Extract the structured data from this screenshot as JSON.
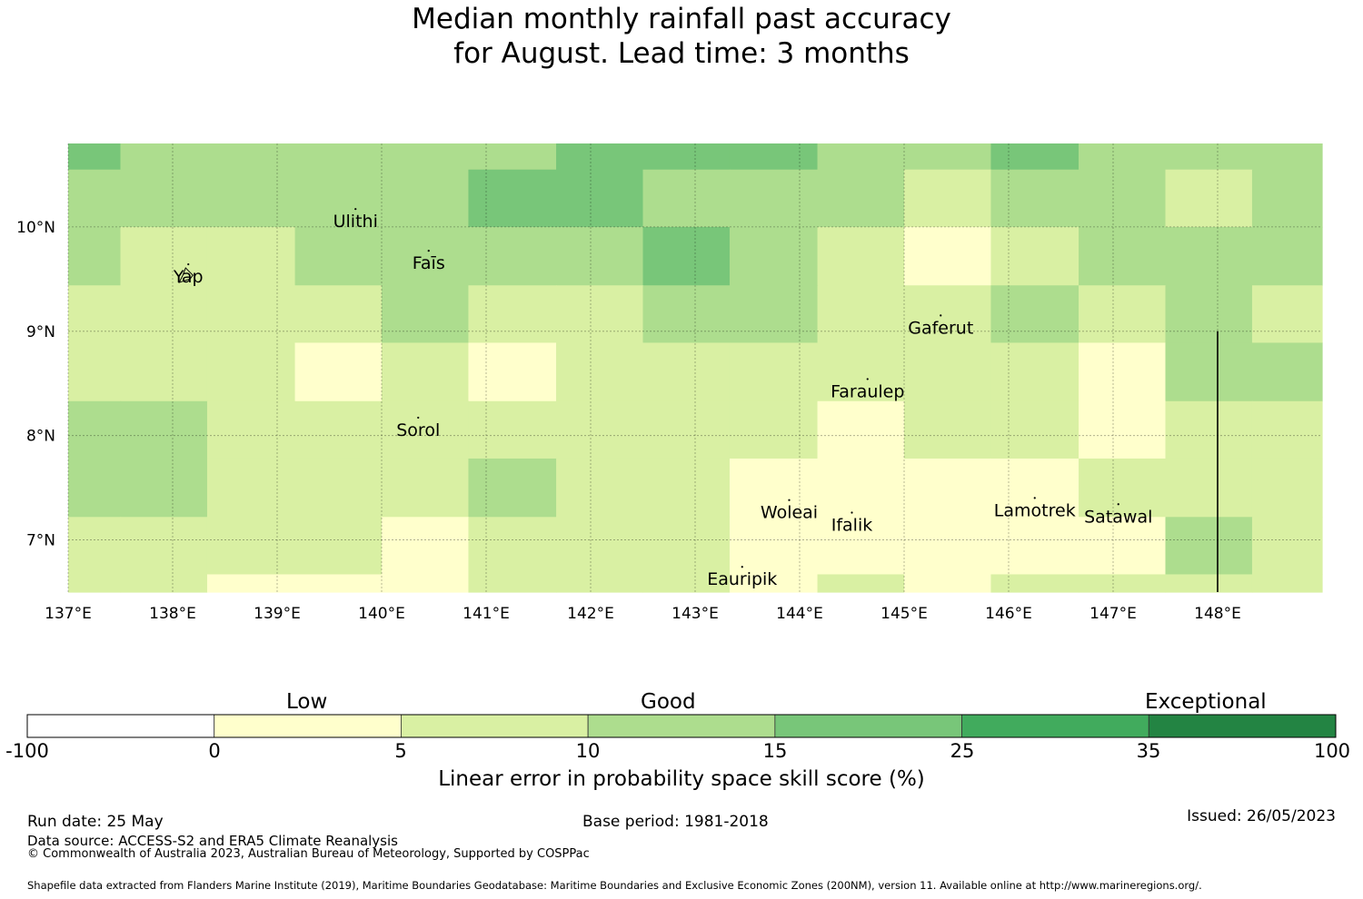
{
  "title": {
    "line1": "Median monthly rainfall past accuracy",
    "line2": "for August. Lead time: 3 months"
  },
  "map": {
    "lon_range": [
      137.0,
      149.0
    ],
    "lat_range": [
      6.5,
      10.8
    ],
    "lon_ticks": [
      137,
      138,
      139,
      140,
      141,
      142,
      143,
      144,
      145,
      146,
      147,
      148
    ],
    "lat_ticks": [
      7,
      8,
      9,
      10
    ],
    "lon_tick_labels": [
      "137°E",
      "138°E",
      "139°E",
      "140°E",
      "141°E",
      "142°E",
      "143°E",
      "144°E",
      "145°E",
      "146°E",
      "147°E",
      "148°E"
    ],
    "lat_tick_labels": [
      "7°N",
      "8°N",
      "9°N",
      "10°N"
    ],
    "cell_lon_edges": [
      137.0,
      137.5,
      138.33,
      139.17,
      140.0,
      140.83,
      141.67,
      142.5,
      143.33,
      144.17,
      145.0,
      145.83,
      146.67,
      147.5,
      148.33,
      149.0
    ],
    "cell_lat_edges": [
      10.8,
      10.55,
      10.0,
      9.44,
      8.89,
      8.33,
      7.78,
      7.22,
      6.67,
      6.5
    ],
    "grid_class_rows": [
      [
        4,
        3,
        3,
        3,
        3,
        3,
        4,
        4,
        4,
        3,
        3,
        4,
        3,
        3,
        3
      ],
      [
        3,
        3,
        3,
        3,
        3,
        4,
        4,
        3,
        3,
        3,
        2,
        3,
        3,
        2,
        3
      ],
      [
        3,
        2,
        2,
        3,
        3,
        3,
        3,
        4,
        3,
        2,
        1,
        2,
        3,
        3,
        3
      ],
      [
        2,
        2,
        2,
        2,
        3,
        2,
        2,
        3,
        3,
        2,
        2,
        3,
        2,
        3,
        2
      ],
      [
        2,
        2,
        2,
        1,
        2,
        1,
        2,
        2,
        2,
        2,
        2,
        2,
        1,
        3,
        3
      ],
      [
        3,
        3,
        2,
        2,
        2,
        2,
        2,
        2,
        2,
        1,
        2,
        2,
        1,
        2,
        2
      ],
      [
        3,
        3,
        2,
        2,
        2,
        3,
        2,
        2,
        1,
        1,
        1,
        1,
        2,
        2,
        2
      ],
      [
        2,
        2,
        2,
        2,
        1,
        2,
        2,
        2,
        1,
        1,
        1,
        1,
        1,
        3,
        2
      ],
      [
        2,
        2,
        1,
        1,
        1,
        2,
        2,
        2,
        1,
        2,
        1,
        2,
        2,
        2,
        2
      ]
    ],
    "boundary_line": {
      "lon": 148.0,
      "lat_from": 6.5,
      "lat_to": 9.0
    },
    "places": [
      {
        "name": "Ulithi",
        "lon": 139.75,
        "lat": 10.05
      },
      {
        "name": "Faīs",
        "lon": 140.45,
        "lat": 9.65
      },
      {
        "name": "Yap",
        "lon": 138.15,
        "lat": 9.52
      },
      {
        "name": "Gaferut",
        "lon": 145.35,
        "lat": 9.03
      },
      {
        "name": "Faraulep",
        "lon": 144.65,
        "lat": 8.42
      },
      {
        "name": "Sorol",
        "lon": 140.35,
        "lat": 8.05
      },
      {
        "name": "Woleai",
        "lon": 143.9,
        "lat": 7.26
      },
      {
        "name": "Ifalik",
        "lon": 144.5,
        "lat": 7.14
      },
      {
        "name": "Lamotrek",
        "lon": 146.25,
        "lat": 7.28
      },
      {
        "name": "Satawal",
        "lon": 147.05,
        "lat": 7.22
      },
      {
        "name": "Eauripik",
        "lon": 143.45,
        "lat": 6.62
      }
    ]
  },
  "colorbar": {
    "class_colors": [
      "#ffffff",
      "#ffffcc",
      "#d9f0a3",
      "#addd8e",
      "#78c679",
      "#41ab5d",
      "#238443"
    ],
    "tick_labels": [
      "-100",
      "0",
      "5",
      "10",
      "15",
      "25",
      "35",
      "100"
    ],
    "categories": [
      "Low",
      "Good",
      "Exceptional"
    ],
    "label": "Linear error in probability space skill score (%)"
  },
  "footer": {
    "run_date": "Run date: 25 May",
    "base_period": "Base period: 1981-2018",
    "issued": "Issued: 26/05/2023",
    "data_source": "Data source: ACCESS-S2 and ERA5 Climate Reanalysis",
    "copyright": "© Commonwealth of Australia 2023, Australian Bureau of Meteorology, Supported by COSPPac",
    "shapefile": "Shapefile data extracted from Flanders Marine Institute (2019), Maritime Boundaries Geodatabase: Maritime Boundaries and Exclusive Economic Zones (200NM), version 11. Available online at http://www.marineregions.org/."
  }
}
